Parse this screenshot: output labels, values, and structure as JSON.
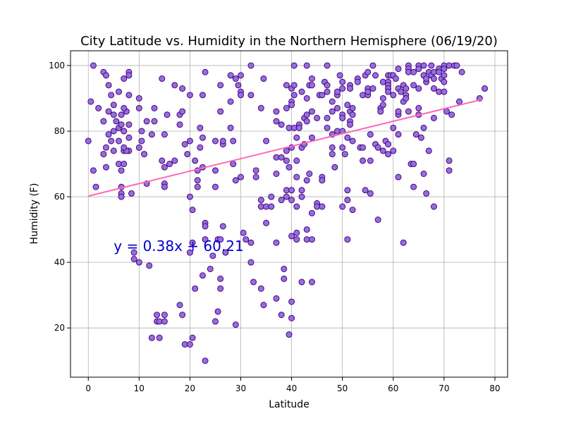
{
  "chart_data": {
    "type": "scatter",
    "title": "City Latitude vs. Humidity in the Northern Hemisphere (06/19/20)",
    "xlabel": "Latitude",
    "ylabel": "Humidity (F)",
    "xlim": [
      -3.5,
      82.5
    ],
    "ylim": [
      5,
      104.5
    ],
    "xticks": [
      0,
      10,
      20,
      30,
      40,
      50,
      60,
      70,
      80
    ],
    "yticks": [
      20,
      40,
      60,
      80,
      100
    ],
    "grid": true,
    "marker_fill": "#9370db",
    "marker_edge": "#4b0082",
    "regression": {
      "equation": "y = 0.38x + 60.21",
      "slope": 0.38,
      "intercept": 60.21,
      "x_range": [
        0,
        77.5
      ],
      "color": "#ff69b4",
      "label_color": "#0000cd",
      "label_anchor": [
        5,
        45
      ]
    },
    "points": [
      [
        0,
        77
      ],
      [
        0.5,
        89
      ],
      [
        1,
        68
      ],
      [
        1,
        100
      ],
      [
        2,
        87
      ],
      [
        1.5,
        63
      ],
      [
        3,
        98
      ],
      [
        3.5,
        97
      ],
      [
        4,
        94
      ],
      [
        3,
        83
      ],
      [
        4,
        86
      ],
      [
        5,
        85
      ],
      [
        5,
        80
      ],
      [
        5.5,
        83
      ],
      [
        6,
        81
      ],
      [
        6,
        77
      ],
      [
        4.5,
        77
      ],
      [
        5,
        74
      ],
      [
        6,
        70
      ],
      [
        6.5,
        68
      ],
      [
        7,
        74
      ],
      [
        6.5,
        63
      ],
      [
        6.5,
        61
      ],
      [
        6.5,
        60
      ],
      [
        3,
        73
      ],
      [
        3.5,
        75
      ],
      [
        4,
        79
      ],
      [
        3.5,
        69
      ],
      [
        6,
        92
      ],
      [
        7,
        96
      ],
      [
        8,
        98
      ],
      [
        8,
        91
      ],
      [
        8,
        97
      ],
      [
        7.5,
        86
      ],
      [
        8,
        82
      ],
      [
        7,
        80
      ],
      [
        6.5,
        82
      ],
      [
        7,
        80
      ],
      [
        8,
        78
      ],
      [
        8,
        74
      ],
      [
        7.5,
        74
      ],
      [
        7,
        75
      ],
      [
        7,
        70
      ],
      [
        8.5,
        61
      ],
      [
        7,
        87
      ],
      [
        6.5,
        85
      ],
      [
        5,
        88
      ],
      [
        4.5,
        91
      ],
      [
        9,
        41
      ],
      [
        9,
        43
      ],
      [
        10,
        40
      ],
      [
        10.5,
        77
      ],
      [
        10,
        75
      ],
      [
        10,
        87
      ],
      [
        10,
        90
      ],
      [
        10.5,
        80
      ],
      [
        11,
        73
      ],
      [
        11.5,
        64
      ],
      [
        11.5,
        83
      ],
      [
        12,
        39
      ],
      [
        12.5,
        79
      ],
      [
        13,
        87
      ],
      [
        13,
        83
      ],
      [
        12.5,
        17
      ],
      [
        13.5,
        22
      ],
      [
        13.5,
        24
      ],
      [
        14,
        17
      ],
      [
        14,
        22
      ],
      [
        15,
        24
      ],
      [
        15,
        22
      ],
      [
        14.5,
        96
      ],
      [
        15,
        79
      ],
      [
        14.5,
        71
      ],
      [
        15,
        69
      ],
      [
        15,
        64
      ],
      [
        15,
        63
      ],
      [
        15.5,
        85
      ],
      [
        16,
        70
      ],
      [
        17,
        94
      ],
      [
        17,
        71
      ],
      [
        18,
        85
      ],
      [
        18.5,
        93
      ],
      [
        18.5,
        86
      ],
      [
        18,
        82
      ],
      [
        18,
        27
      ],
      [
        18.5,
        24
      ],
      [
        19,
        15
      ],
      [
        19,
        76
      ],
      [
        19.5,
        73
      ],
      [
        20,
        60
      ],
      [
        20,
        91
      ],
      [
        20,
        77
      ],
      [
        20.5,
        56
      ],
      [
        20,
        43
      ],
      [
        20.5,
        46
      ],
      [
        20,
        15
      ],
      [
        20.5,
        17
      ],
      [
        21,
        32
      ],
      [
        21,
        71
      ],
      [
        21.5,
        65
      ],
      [
        21.5,
        63
      ],
      [
        21.5,
        68
      ],
      [
        22,
        75
      ],
      [
        22,
        81
      ],
      [
        22.5,
        78
      ],
      [
        22.5,
        91
      ],
      [
        22.5,
        69
      ],
      [
        23,
        98
      ],
      [
        23,
        52
      ],
      [
        23,
        51
      ],
      [
        23,
        47
      ],
      [
        22.5,
        36
      ],
      [
        23,
        10
      ],
      [
        24,
        38
      ],
      [
        24.5,
        42
      ],
      [
        25,
        77
      ],
      [
        25,
        63
      ],
      [
        25,
        68
      ],
      [
        25.5,
        47
      ],
      [
        26,
        47
      ],
      [
        25,
        22
      ],
      [
        25.5,
        25
      ],
      [
        26,
        35
      ],
      [
        26,
        32
      ],
      [
        26,
        86
      ],
      [
        26.5,
        76
      ],
      [
        26.5,
        77
      ],
      [
        26,
        94
      ],
      [
        26.5,
        51
      ],
      [
        27,
        43
      ],
      [
        28,
        97
      ],
      [
        28,
        89
      ],
      [
        28,
        81
      ],
      [
        28.5,
        77
      ],
      [
        28.5,
        70
      ],
      [
        29,
        96
      ],
      [
        29.5,
        94
      ],
      [
        29,
        65
      ],
      [
        29,
        21
      ],
      [
        30,
        97
      ],
      [
        30,
        92
      ],
      [
        30,
        91
      ],
      [
        30.5,
        49
      ],
      [
        30,
        66
      ],
      [
        31,
        47
      ],
      [
        32,
        100
      ],
      [
        32,
        91
      ],
      [
        32,
        40
      ],
      [
        32,
        46
      ],
      [
        32.5,
        34
      ],
      [
        33,
        66
      ],
      [
        33,
        68
      ],
      [
        34,
        59
      ],
      [
        34,
        57
      ],
      [
        34.5,
        27
      ],
      [
        34,
        32
      ],
      [
        34.5,
        96
      ],
      [
        34,
        87
      ],
      [
        35,
        77
      ],
      [
        35,
        52
      ],
      [
        35,
        57
      ],
      [
        36,
        57
      ],
      [
        36,
        60
      ],
      [
        37,
        86
      ],
      [
        37,
        83
      ],
      [
        37,
        72
      ],
      [
        37,
        67
      ],
      [
        37,
        46
      ],
      [
        37,
        29
      ],
      [
        38,
        59
      ],
      [
        38,
        82
      ],
      [
        38,
        72
      ],
      [
        38,
        24
      ],
      [
        38.5,
        38
      ],
      [
        38.5,
        35
      ],
      [
        39,
        94
      ],
      [
        39,
        87
      ],
      [
        39,
        74
      ],
      [
        39,
        71
      ],
      [
        39,
        62
      ],
      [
        39,
        60
      ],
      [
        39.5,
        81
      ],
      [
        39.5,
        69
      ],
      [
        40,
        93
      ],
      [
        40,
        89
      ],
      [
        40,
        88
      ],
      [
        40,
        75
      ],
      [
        40,
        62
      ],
      [
        40,
        59
      ],
      [
        39.5,
        18
      ],
      [
        40,
        28
      ],
      [
        40,
        23
      ],
      [
        40,
        48
      ],
      [
        40.5,
        100
      ],
      [
        40.5,
        94
      ],
      [
        40.5,
        91
      ],
      [
        40.5,
        81
      ],
      [
        41,
        78
      ],
      [
        41,
        71
      ],
      [
        41,
        66
      ],
      [
        41,
        57
      ],
      [
        41,
        49
      ],
      [
        41,
        47
      ],
      [
        42,
        92
      ],
      [
        41.5,
        82
      ],
      [
        41.5,
        81
      ],
      [
        42,
        75
      ],
      [
        42,
        62
      ],
      [
        42,
        60
      ],
      [
        42,
        34
      ],
      [
        42.5,
        84
      ],
      [
        42.5,
        76
      ],
      [
        43,
        100
      ],
      [
        43,
        90
      ],
      [
        43,
        85
      ],
      [
        43,
        83
      ],
      [
        43,
        65
      ],
      [
        43,
        50
      ],
      [
        43,
        47
      ],
      [
        43.5,
        94
      ],
      [
        43.5,
        67
      ],
      [
        44,
        96
      ],
      [
        44,
        94
      ],
      [
        44,
        86
      ],
      [
        44,
        78
      ],
      [
        44,
        55
      ],
      [
        44,
        47
      ],
      [
        44,
        34
      ],
      [
        45,
        84
      ],
      [
        45,
        58
      ],
      [
        45,
        57
      ],
      [
        45.5,
        91
      ],
      [
        46,
        91
      ],
      [
        46,
        66
      ],
      [
        46,
        65
      ],
      [
        46,
        57
      ],
      [
        46.5,
        95
      ],
      [
        47,
        94
      ],
      [
        47,
        92
      ],
      [
        47,
        84
      ],
      [
        47,
        100
      ],
      [
        47,
        81
      ],
      [
        48,
        86
      ],
      [
        48,
        89
      ],
      [
        48,
        79
      ],
      [
        48,
        75
      ],
      [
        48,
        73
      ],
      [
        48.5,
        69
      ],
      [
        49,
        91
      ],
      [
        49,
        92
      ],
      [
        49,
        87
      ],
      [
        49,
        80
      ],
      [
        49.5,
        97
      ],
      [
        50,
        95
      ],
      [
        50,
        93
      ],
      [
        50,
        85
      ],
      [
        50,
        84
      ],
      [
        50,
        80
      ],
      [
        50,
        75
      ],
      [
        50,
        57
      ],
      [
        50.5,
        73
      ],
      [
        51,
        88
      ],
      [
        51,
        78
      ],
      [
        51,
        62
      ],
      [
        51,
        59
      ],
      [
        51,
        47
      ],
      [
        51.5,
        94
      ],
      [
        51.5,
        93
      ],
      [
        51.5,
        86
      ],
      [
        51.5,
        83
      ],
      [
        51.5,
        82
      ],
      [
        52,
        77
      ],
      [
        52,
        56
      ],
      [
        52,
        85
      ],
      [
        52,
        87
      ],
      [
        53,
        96
      ],
      [
        53,
        95
      ],
      [
        53.5,
        75
      ],
      [
        54,
        91
      ],
      [
        54,
        71
      ],
      [
        54,
        75
      ],
      [
        54.5,
        62
      ],
      [
        54.5,
        97
      ],
      [
        55,
        98
      ],
      [
        55,
        91
      ],
      [
        55,
        93
      ],
      [
        55,
        92
      ],
      [
        55.5,
        79
      ],
      [
        55.5,
        71
      ],
      [
        55.5,
        61
      ],
      [
        56,
        100
      ],
      [
        56,
        93
      ],
      [
        56.5,
        97
      ],
      [
        56.5,
        76
      ],
      [
        57,
        53
      ],
      [
        57,
        75
      ],
      [
        57.5,
        87
      ],
      [
        57.5,
        86
      ],
      [
        58,
        95
      ],
      [
        58,
        90
      ],
      [
        58,
        88
      ],
      [
        58,
        74
      ],
      [
        58.5,
        77
      ],
      [
        59,
        97
      ],
      [
        59,
        95
      ],
      [
        59,
        94
      ],
      [
        59,
        93
      ],
      [
        59,
        92
      ],
      [
        59,
        76
      ],
      [
        59,
        73
      ],
      [
        59.5,
        97
      ],
      [
        60,
        97
      ],
      [
        60,
        91
      ],
      [
        60,
        81
      ],
      [
        60,
        74
      ],
      [
        60.5,
        96
      ],
      [
        61,
        85
      ],
      [
        61,
        93
      ],
      [
        61,
        86
      ],
      [
        61,
        79
      ],
      [
        61,
        66
      ],
      [
        61,
        99
      ],
      [
        61.5,
        92
      ],
      [
        62,
        94
      ],
      [
        62,
        89
      ],
      [
        62,
        46
      ],
      [
        62.5,
        93
      ],
      [
        62.5,
        91
      ],
      [
        62.5,
        90
      ],
      [
        63,
        100
      ],
      [
        63,
        99
      ],
      [
        63,
        98
      ],
      [
        63,
        86
      ],
      [
        63.5,
        70
      ],
      [
        64,
        98
      ],
      [
        64,
        94
      ],
      [
        64,
        63
      ],
      [
        64,
        70
      ],
      [
        64.5,
        79
      ],
      [
        65,
        100
      ],
      [
        65,
        99
      ],
      [
        65,
        93
      ],
      [
        65,
        87
      ],
      [
        65,
        85
      ],
      [
        65.5,
        78
      ],
      [
        66,
        67
      ],
      [
        66,
        81
      ],
      [
        66,
        97
      ],
      [
        66,
        100
      ],
      [
        66.5,
        95
      ],
      [
        66.5,
        96
      ],
      [
        67,
        98
      ],
      [
        67,
        74
      ],
      [
        66.5,
        61
      ],
      [
        67.5,
        100
      ],
      [
        67.5,
        97
      ],
      [
        68,
        98
      ],
      [
        68,
        96
      ],
      [
        68,
        93
      ],
      [
        68,
        84
      ],
      [
        68,
        57
      ],
      [
        69,
        99
      ],
      [
        69,
        98
      ],
      [
        69,
        92
      ],
      [
        69.5,
        96
      ],
      [
        70,
        100
      ],
      [
        70,
        97
      ],
      [
        70,
        95
      ],
      [
        70,
        92
      ],
      [
        70,
        99
      ],
      [
        70.5,
        86
      ],
      [
        71,
        71
      ],
      [
        71,
        68
      ],
      [
        71,
        100
      ],
      [
        71.5,
        85
      ],
      [
        72,
        100
      ],
      [
        72.5,
        100
      ],
      [
        73,
        89
      ],
      [
        73.5,
        98
      ],
      [
        77,
        90
      ],
      [
        78,
        93
      ]
    ]
  }
}
